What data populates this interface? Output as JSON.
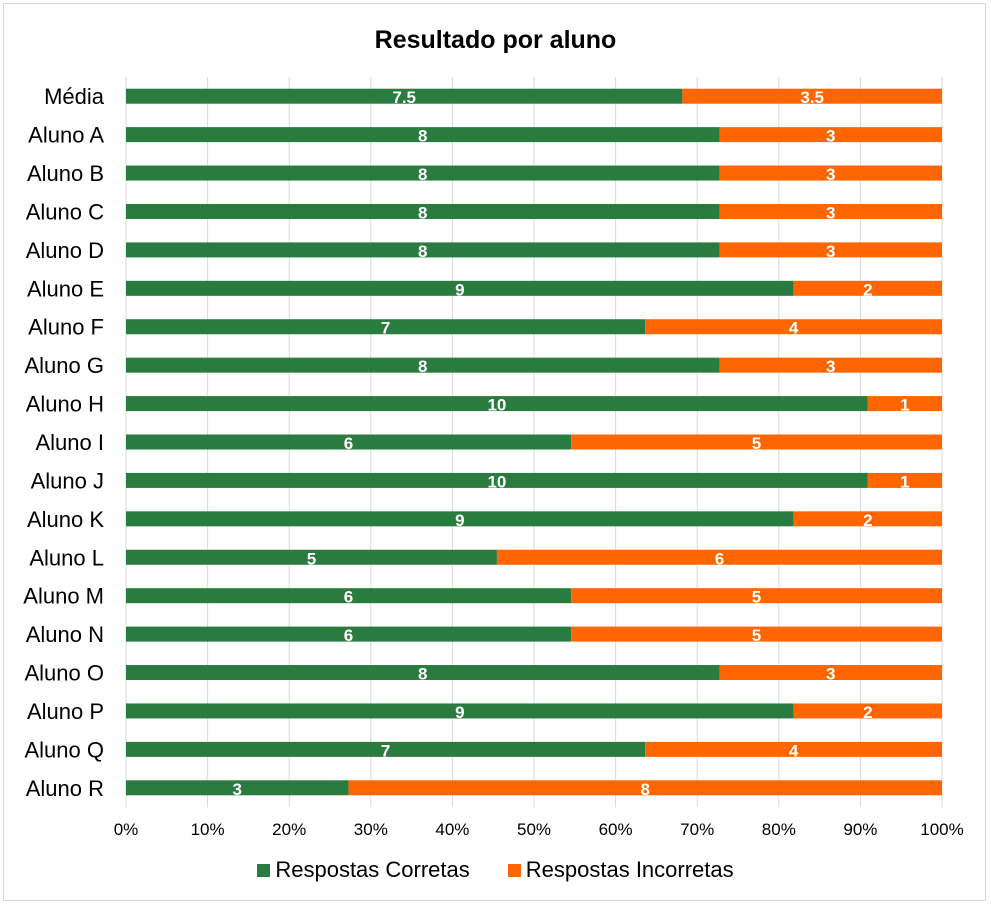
{
  "chart_data": {
    "type": "bar",
    "orientation": "horizontal",
    "stacked": "percent",
    "title": "Resultado por aluno",
    "categories": [
      "Média",
      "Aluno A",
      "Aluno B",
      "Aluno C",
      "Aluno D",
      "Aluno E",
      "Aluno F",
      "Aluno G",
      "Aluno H",
      "Aluno I",
      "Aluno J",
      "Aluno K",
      "Aluno L",
      "Aluno M",
      "Aluno N",
      "Aluno O",
      "Aluno P",
      "Aluno Q",
      "Aluno R"
    ],
    "series": [
      {
        "name": "Respostas Corretas",
        "color": "#2a7b3f",
        "values": [
          7.5,
          8,
          8,
          8,
          8,
          9,
          7,
          8,
          10,
          6,
          10,
          9,
          5,
          6,
          6,
          8,
          9,
          7,
          3
        ]
      },
      {
        "name": "Respostas Incorretas",
        "color": "#ff6600",
        "values": [
          3.5,
          3,
          3,
          3,
          3,
          2,
          4,
          3,
          1,
          5,
          1,
          2,
          6,
          5,
          5,
          3,
          2,
          4,
          8
        ]
      }
    ],
    "x_ticks": [
      "0%",
      "10%",
      "20%",
      "30%",
      "40%",
      "50%",
      "60%",
      "70%",
      "80%",
      "90%",
      "100%"
    ],
    "xlim": [
      0,
      100
    ],
    "grid": true,
    "legend_position": "bottom"
  }
}
